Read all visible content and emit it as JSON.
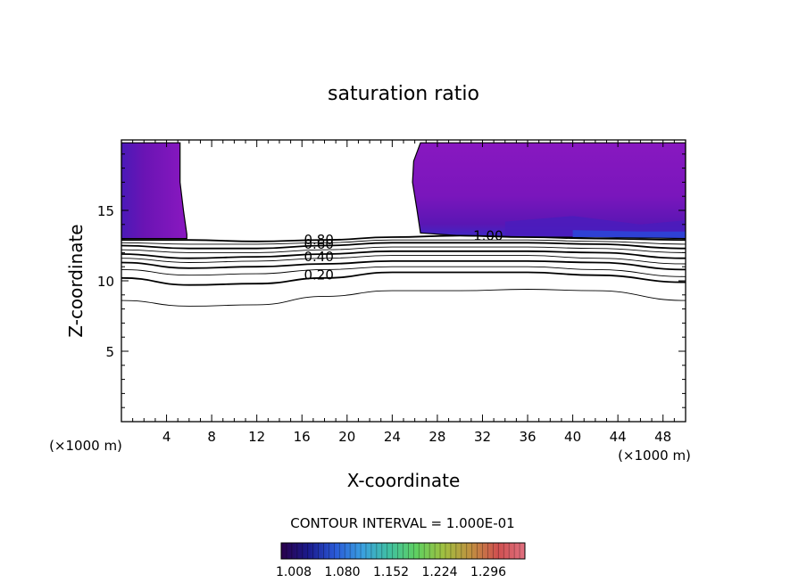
{
  "chart_data": {
    "type": "contour",
    "title": "saturation ratio",
    "xlabel": "X-coordinate",
    "ylabel": "Z-coordinate",
    "x_unit_left": "(×1000 m)",
    "x_unit_right": "(×1000 m)",
    "xlim": [
      0,
      50
    ],
    "ylim": [
      0,
      20
    ],
    "xticks": [
      4,
      8,
      12,
      16,
      20,
      24,
      28,
      32,
      36,
      40,
      44,
      48
    ],
    "yticks": [
      5,
      10,
      15
    ],
    "contour_interval_text": "CONTOUR INTERVAL = 1.000E-01",
    "contour_labels": [
      {
        "text": "0.80",
        "x": 17.5,
        "y": 12.9
      },
      {
        "text": "0.60",
        "x": 17.5,
        "y": 12.6
      },
      {
        "text": "0.40",
        "x": 17.5,
        "y": 11.7
      },
      {
        "text": "0.20",
        "x": 17.5,
        "y": 10.4
      },
      {
        "text": "1.00",
        "x": 32.5,
        "y": 13.2
      }
    ],
    "contour_lines": [
      {
        "level": 1.0,
        "points": [
          [
            0,
            12.9
          ],
          [
            6,
            12.9
          ],
          [
            12,
            12.8
          ],
          [
            18,
            12.9
          ],
          [
            24,
            13.1
          ],
          [
            30,
            13.2
          ],
          [
            36,
            13.1
          ],
          [
            42,
            13.0
          ],
          [
            50,
            12.9
          ]
        ]
      },
      {
        "level": 0.9,
        "points": [
          [
            0,
            12.7
          ],
          [
            6,
            12.6
          ],
          [
            12,
            12.6
          ],
          [
            18,
            12.7
          ],
          [
            24,
            12.9
          ],
          [
            30,
            12.9
          ],
          [
            36,
            12.9
          ],
          [
            42,
            12.8
          ],
          [
            50,
            12.6
          ]
        ]
      },
      {
        "level": 0.8,
        "points": [
          [
            0,
            12.5
          ],
          [
            6,
            12.3
          ],
          [
            12,
            12.3
          ],
          [
            18,
            12.5
          ],
          [
            24,
            12.7
          ],
          [
            30,
            12.7
          ],
          [
            36,
            12.7
          ],
          [
            42,
            12.6
          ],
          [
            50,
            12.3
          ]
        ]
      },
      {
        "level": 0.7,
        "points": [
          [
            0,
            12.2
          ],
          [
            6,
            12.0
          ],
          [
            12,
            12.0
          ],
          [
            18,
            12.2
          ],
          [
            24,
            12.4
          ],
          [
            30,
            12.4
          ],
          [
            36,
            12.4
          ],
          [
            42,
            12.3
          ],
          [
            50,
            12.0
          ]
        ]
      },
      {
        "level": 0.6,
        "points": [
          [
            0,
            11.9
          ],
          [
            6,
            11.6
          ],
          [
            12,
            11.7
          ],
          [
            18,
            11.9
          ],
          [
            24,
            12.1
          ],
          [
            30,
            12.1
          ],
          [
            36,
            12.1
          ],
          [
            42,
            12.0
          ],
          [
            50,
            11.6
          ]
        ]
      },
      {
        "level": 0.5,
        "points": [
          [
            0,
            11.6
          ],
          [
            6,
            11.3
          ],
          [
            12,
            11.4
          ],
          [
            18,
            11.6
          ],
          [
            24,
            11.8
          ],
          [
            30,
            11.8
          ],
          [
            36,
            11.8
          ],
          [
            42,
            11.6
          ],
          [
            50,
            11.2
          ]
        ]
      },
      {
        "level": 0.4,
        "points": [
          [
            0,
            11.3
          ],
          [
            6,
            10.9
          ],
          [
            12,
            11.0
          ],
          [
            18,
            11.2
          ],
          [
            24,
            11.4
          ],
          [
            30,
            11.4
          ],
          [
            36,
            11.4
          ],
          [
            42,
            11.3
          ],
          [
            50,
            10.8
          ]
        ]
      },
      {
        "level": 0.3,
        "points": [
          [
            0,
            10.8
          ],
          [
            6,
            10.4
          ],
          [
            12,
            10.5
          ],
          [
            18,
            10.8
          ],
          [
            24,
            11.0
          ],
          [
            30,
            11.0
          ],
          [
            36,
            11.0
          ],
          [
            42,
            10.8
          ],
          [
            50,
            10.3
          ]
        ]
      },
      {
        "level": 0.2,
        "points": [
          [
            0,
            10.2
          ],
          [
            6,
            9.7
          ],
          [
            12,
            9.8
          ],
          [
            18,
            10.2
          ],
          [
            24,
            10.6
          ],
          [
            30,
            10.6
          ],
          [
            36,
            10.6
          ],
          [
            42,
            10.4
          ],
          [
            50,
            9.9
          ]
        ]
      },
      {
        "level": 0.1,
        "points": [
          [
            0,
            8.6
          ],
          [
            6,
            8.2
          ],
          [
            12,
            8.3
          ],
          [
            18,
            8.9
          ],
          [
            24,
            9.3
          ],
          [
            30,
            9.3
          ],
          [
            36,
            9.4
          ],
          [
            42,
            9.3
          ],
          [
            50,
            8.6
          ]
        ]
      }
    ],
    "filled_regions": [
      {
        "name": "left",
        "polygon": [
          [
            0,
            19.8
          ],
          [
            5.2,
            19.8
          ],
          [
            5.2,
            17.0
          ],
          [
            5.5,
            15.0
          ],
          [
            5.8,
            13.3
          ],
          [
            5.8,
            13.0
          ],
          [
            0,
            13.0
          ]
        ]
      },
      {
        "name": "right",
        "polygon": [
          [
            26.5,
            19.8
          ],
          [
            50,
            19.8
          ],
          [
            50,
            13.0
          ],
          [
            42,
            13.1
          ],
          [
            36,
            13.1
          ],
          [
            30,
            13.2
          ],
          [
            26.5,
            13.4
          ],
          [
            26.2,
            15.0
          ],
          [
            25.8,
            17.0
          ],
          [
            25.9,
            18.5
          ],
          [
            26.5,
            19.8
          ]
        ]
      }
    ],
    "colorbar": {
      "ticks": [
        "1.008",
        "1.080",
        "1.152",
        "1.224",
        "1.296"
      ],
      "colors": [
        "#2a004a",
        "#1a1a8c",
        "#2a5ad8",
        "#3aa0e0",
        "#40c0a0",
        "#60d060",
        "#a0c040",
        "#c09040",
        "#d05050",
        "#e07080"
      ]
    },
    "fill_colors": [
      "#8a18c0",
      "#7a14b8",
      "#6a12b0",
      "#5a14b0",
      "#4a18b8",
      "#2a50e0"
    ]
  }
}
